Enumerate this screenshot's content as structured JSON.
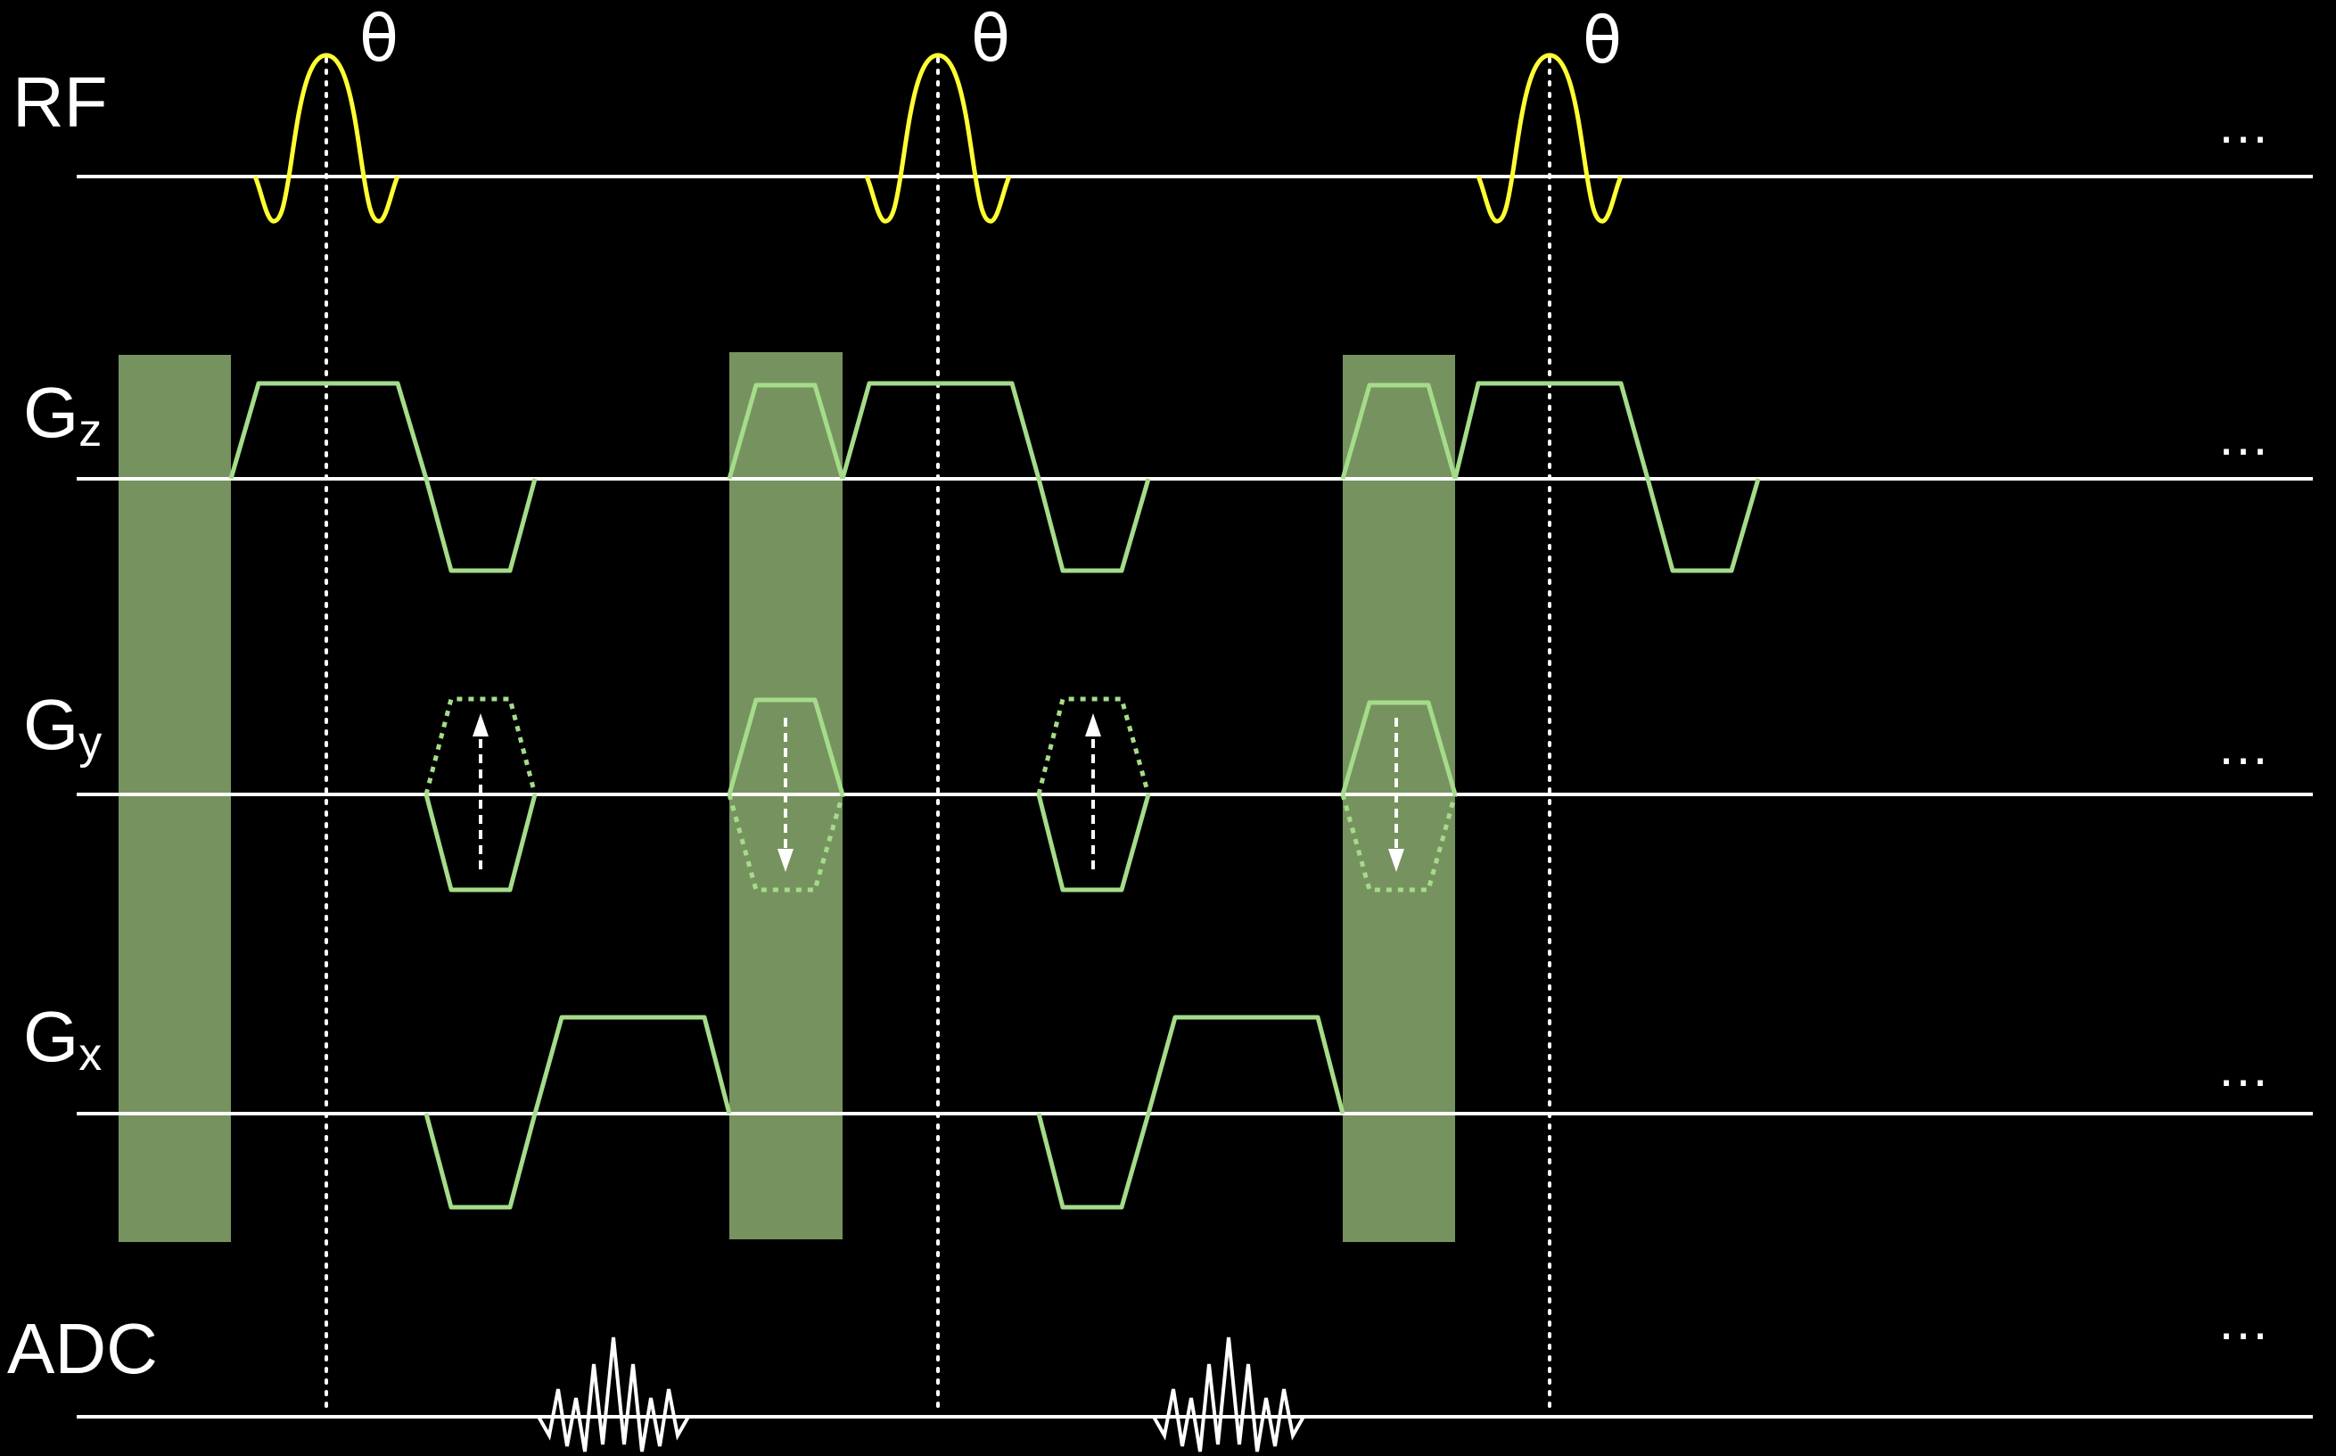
{
  "rows": {
    "rf": {
      "label": "RF"
    },
    "gz": {
      "label": "G",
      "sub": "z"
    },
    "gy": {
      "label": "G",
      "sub": "y"
    },
    "gx": {
      "label": "G",
      "sub": "x"
    },
    "adc": {
      "label": "ADC"
    }
  },
  "flip_angle_symbol": "θ",
  "continuation": "…",
  "colors": {
    "background": "#000000",
    "axis": "#ffffff",
    "rf_pulse": "#ffff33",
    "gradient": "#a5dc8a",
    "spoiler_block": "#76935f",
    "adc_signal": "#ffffff"
  }
}
